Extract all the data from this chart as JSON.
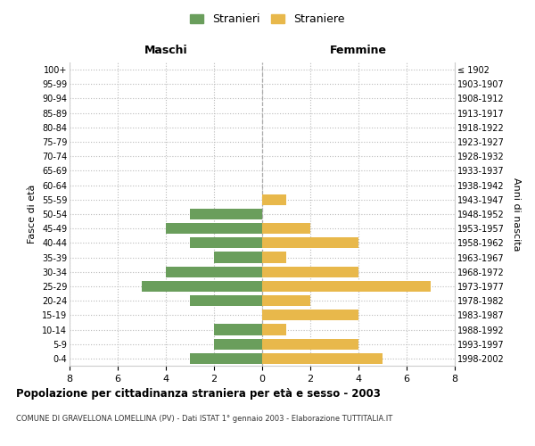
{
  "age_groups": [
    "0-4",
    "5-9",
    "10-14",
    "15-19",
    "20-24",
    "25-29",
    "30-34",
    "35-39",
    "40-44",
    "45-49",
    "50-54",
    "55-59",
    "60-64",
    "65-69",
    "70-74",
    "75-79",
    "80-84",
    "85-89",
    "90-94",
    "95-99",
    "100+"
  ],
  "birth_years": [
    "1998-2002",
    "1993-1997",
    "1988-1992",
    "1983-1987",
    "1978-1982",
    "1973-1977",
    "1968-1972",
    "1963-1967",
    "1958-1962",
    "1953-1957",
    "1948-1952",
    "1943-1947",
    "1938-1942",
    "1933-1937",
    "1928-1932",
    "1923-1927",
    "1918-1922",
    "1913-1917",
    "1908-1912",
    "1903-1907",
    "≤ 1902"
  ],
  "maschi": [
    3,
    2,
    2,
    0,
    3,
    5,
    4,
    2,
    3,
    4,
    3,
    0,
    0,
    0,
    0,
    0,
    0,
    0,
    0,
    0,
    0
  ],
  "femmine": [
    5,
    4,
    1,
    4,
    2,
    7,
    4,
    1,
    4,
    2,
    0,
    1,
    0,
    0,
    0,
    0,
    0,
    0,
    0,
    0,
    0
  ],
  "color_maschi": "#6a9e5c",
  "color_femmine": "#e8b84b",
  "xlim": 8,
  "title": "Popolazione per cittadinanza straniera per età e sesso - 2003",
  "subtitle": "COMUNE DI GRAVELLONA LOMELLINA (PV) - Dati ISTAT 1° gennaio 2003 - Elaborazione TUTTITALIA.IT",
  "label_maschi": "Stranieri",
  "label_femmine": "Straniere",
  "xlabel_left": "Maschi",
  "xlabel_right": "Femmine",
  "ylabel_left": "Fasce di età",
  "ylabel_right": "Anni di nascita",
  "bg_color": "#ffffff",
  "grid_color": "#cccccc"
}
